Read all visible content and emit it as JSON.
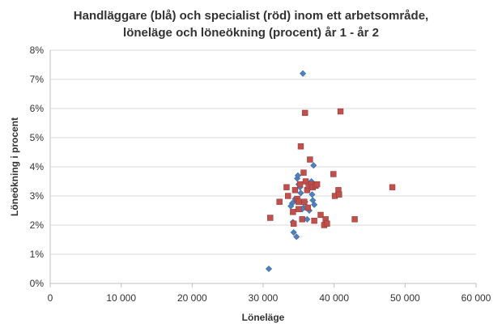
{
  "chart_data": {
    "type": "scatter",
    "title_lines": [
      "Handläggare (blå) och specialist (röd) inom ett arbetsområde,",
      "löneläge och löneökning (procent) år 1 - år 2"
    ],
    "xlabel": "Löneläge",
    "ylabel": "Löneökning i procent",
    "xlim": [
      0,
      60000
    ],
    "ylim": [
      0,
      8
    ],
    "x_ticks": [
      0,
      10000,
      20000,
      30000,
      40000,
      50000,
      60000
    ],
    "x_tick_labels": [
      "0",
      "10 000",
      "20 000",
      "30 000",
      "40 000",
      "50 000",
      "60 000"
    ],
    "y_ticks": [
      0,
      1,
      2,
      3,
      4,
      5,
      6,
      7,
      8
    ],
    "y_tick_labels": [
      "0%",
      "1%",
      "2%",
      "3%",
      "4%",
      "5%",
      "6%",
      "7%",
      "8%"
    ],
    "grid": "horizontal",
    "legend": "none",
    "series": [
      {
        "color": "#4f81bd",
        "marker": "diamond",
        "points": [
          [
            30800,
            0.5
          ],
          [
            34300,
            1.75
          ],
          [
            34700,
            1.6
          ],
          [
            34200,
            2.1
          ],
          [
            35600,
            7.2
          ],
          [
            34500,
            2.9
          ],
          [
            34800,
            3.6
          ],
          [
            34900,
            3.7
          ],
          [
            35000,
            3.4
          ],
          [
            35300,
            3.1
          ],
          [
            35700,
            2.6
          ],
          [
            34100,
            2.75
          ],
          [
            33900,
            2.65
          ],
          [
            35500,
            2.55
          ],
          [
            36500,
            2.5
          ],
          [
            37000,
            2.85
          ],
          [
            37200,
            2.7
          ],
          [
            36200,
            2.2
          ],
          [
            36800,
            3.5
          ],
          [
            36900,
            3.05
          ],
          [
            37100,
            4.05
          ],
          [
            35900,
            2.8
          ],
          [
            35200,
            3.3
          ],
          [
            34600,
            2.85
          ],
          [
            36400,
            3.25
          ]
        ]
      },
      {
        "color": "#c0504d",
        "marker": "square",
        "points": [
          [
            31000,
            2.25
          ],
          [
            32300,
            2.8
          ],
          [
            33300,
            3.3
          ],
          [
            33500,
            3.0
          ],
          [
            34300,
            2.05
          ],
          [
            34500,
            3.2
          ],
          [
            34800,
            2.9
          ],
          [
            35000,
            2.8
          ],
          [
            35200,
            3.4
          ],
          [
            35300,
            4.7
          ],
          [
            35500,
            2.2
          ],
          [
            35700,
            3.8
          ],
          [
            35900,
            5.85
          ],
          [
            36000,
            3.5
          ],
          [
            36200,
            3.2
          ],
          [
            36400,
            3.35
          ],
          [
            36600,
            4.25
          ],
          [
            36800,
            3.4
          ],
          [
            37000,
            3.3
          ],
          [
            37200,
            2.15
          ],
          [
            37400,
            3.35
          ],
          [
            38100,
            2.35
          ],
          [
            38600,
            2.0
          ],
          [
            38800,
            2.2
          ],
          [
            39000,
            2.05
          ],
          [
            39900,
            3.75
          ],
          [
            40100,
            3.0
          ],
          [
            40600,
            3.2
          ],
          [
            40700,
            3.05
          ],
          [
            40900,
            5.9
          ],
          [
            42900,
            2.2
          ],
          [
            48200,
            3.3
          ],
          [
            35000,
            2.55
          ],
          [
            35800,
            2.8
          ],
          [
            36300,
            2.6
          ],
          [
            37600,
            3.4
          ],
          [
            34200,
            2.45
          ]
        ]
      }
    ]
  }
}
